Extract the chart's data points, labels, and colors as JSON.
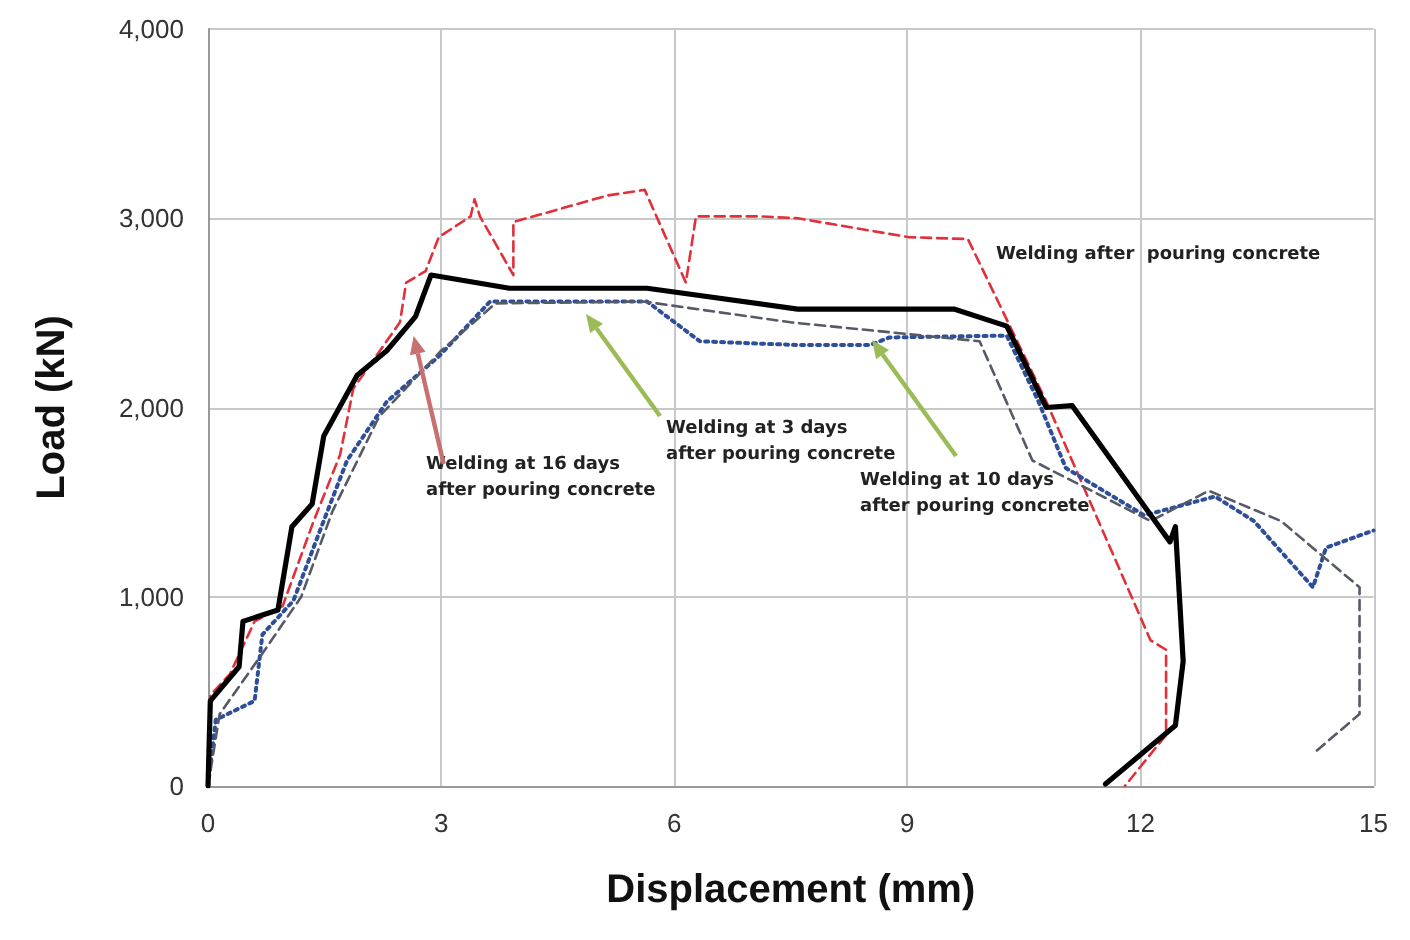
{
  "chart_data": {
    "type": "line",
    "xlabel": "Displacement (mm)",
    "ylabel": "Load (kN)",
    "xlim": [
      0,
      15
    ],
    "xticks": [
      0,
      3,
      6,
      9,
      12,
      15
    ],
    "ylim": [
      0,
      4000
    ],
    "yticks": [
      0,
      {
        "value": 1000,
        "label": "1,000"
      },
      {
        "value": 2000,
        "label": "2,000"
      },
      {
        "value": 3000,
        "label": "3,000"
      },
      {
        "value": 4000,
        "label": "4,000"
      }
    ],
    "grid": true,
    "marker": "none",
    "series": [
      {
        "color": "#e0303a",
        "line_style": "dashed",
        "x": [
          0,
          0.03,
          0.28,
          0.6,
          0.96,
          1.36,
          1.7,
          1.87,
          2.47,
          2.55,
          2.8,
          2.97,
          3.38,
          3.43,
          3.5,
          3.93,
          3.93,
          5.14,
          5.62,
          6.15,
          6.28,
          7.08,
          7.59,
          9.02,
          9.78,
          10.79,
          12.13,
          12.33,
          12.33,
          11.8
        ],
        "values": [
          0,
          480,
          590,
          870,
          950,
          1400,
          1750,
          2100,
          2450,
          2660,
          2720,
          2900,
          3010,
          3100,
          3010,
          2700,
          2980,
          3120,
          3150,
          2660,
          3010,
          3010,
          3000,
          2900,
          2890,
          2030,
          770,
          720,
          270,
          0
        ]
      },
      {
        "color": "#000000",
        "line_style": "solid",
        "x": [
          0,
          0.03,
          0.4,
          0.45,
          0.9,
          1.08,
          1.34,
          1.49,
          1.92,
          2.3,
          2.67,
          2.87,
          3.88,
          5.65,
          7.59,
          9.6,
          10.28,
          10.79,
          11.12,
          12.38,
          12.45,
          12.55,
          12.45,
          12.13,
          11.55
        ],
        "values": [
          0,
          450,
          630,
          870,
          930,
          1370,
          1490,
          1850,
          2170,
          2300,
          2480,
          2700,
          2630,
          2630,
          2520,
          2520,
          2430,
          2000,
          2010,
          1290,
          1370,
          660,
          320,
          210,
          10
        ]
      },
      {
        "color": "#2e4e9a",
        "line_style": "dotted",
        "x": [
          0,
          0.1,
          0.6,
          0.7,
          1.1,
          1.46,
          1.79,
          2.3,
          2.97,
          3.63,
          5.65,
          6.33,
          7.59,
          8.52,
          8.77,
          10.28,
          10.69,
          11.04,
          12.05,
          12.96,
          13.46,
          14.22,
          14.39,
          15
        ],
        "values": [
          0,
          350,
          450,
          800,
          980,
          1370,
          1720,
          2030,
          2270,
          2560,
          2560,
          2350,
          2330,
          2330,
          2370,
          2380,
          2030,
          1680,
          1430,
          1530,
          1400,
          1050,
          1260,
          1350
        ]
      },
      {
        "color": "#555a66",
        "line_style": "dashed",
        "x": [
          0,
          0.15,
          0.7,
          1.2,
          1.6,
          2.2,
          3.0,
          3.7,
          5.6,
          7.5,
          9.93,
          10.61,
          12.13,
          12.88,
          13.81,
          14.82,
          14.82,
          14.22
        ],
        "values": [
          0,
          380,
          700,
          1000,
          1450,
          1950,
          2300,
          2550,
          2560,
          2450,
          2350,
          1720,
          1400,
          1560,
          1400,
          1050,
          380,
          170
        ]
      }
    ],
    "annotations": [
      "Welding after  pouring concrete",
      "Welding at 16 days\nafter pouring concrete",
      "Welding at 3 days\nafter pouring concrete",
      "Welding at 10 days\nafter pouring concrete"
    ]
  }
}
